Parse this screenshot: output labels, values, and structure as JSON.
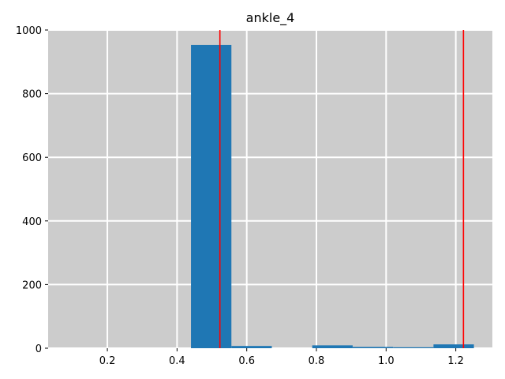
{
  "chart_data": {
    "type": "bar",
    "title": "ankle_4",
    "xlabel": "",
    "ylabel": "",
    "xlim": [
      0.03,
      1.305
    ],
    "ylim": [
      0,
      1000
    ],
    "x_ticks": [
      0.2,
      0.4,
      0.6,
      0.8,
      1.0,
      1.2
    ],
    "x_tick_labels": [
      "0.2",
      "0.4",
      "0.6",
      "0.8",
      "1.0",
      "1.2"
    ],
    "y_ticks": [
      0,
      200,
      400,
      600,
      800,
      1000
    ],
    "y_tick_labels": [
      "0",
      "200",
      "400",
      "600",
      "800",
      "1000"
    ],
    "grid": true,
    "background_color": "#cccccc",
    "grid_color": "#ffffff",
    "bar_color": "#1f77b4",
    "bins": [
      {
        "x0": 0.44,
        "x1": 0.556,
        "count": 953
      },
      {
        "x0": 0.556,
        "x1": 0.672,
        "count": 7
      },
      {
        "x0": 0.672,
        "x1": 0.788,
        "count": 0
      },
      {
        "x0": 0.788,
        "x1": 0.904,
        "count": 9
      },
      {
        "x0": 0.904,
        "x1": 1.02,
        "count": 4
      },
      {
        "x0": 1.02,
        "x1": 1.136,
        "count": 3
      },
      {
        "x0": 1.136,
        "x1": 1.252,
        "count": 12
      }
    ],
    "vlines": [
      {
        "x": 0.523,
        "color": "#ff0000"
      },
      {
        "x": 1.222,
        "color": "#ff0000"
      }
    ]
  }
}
